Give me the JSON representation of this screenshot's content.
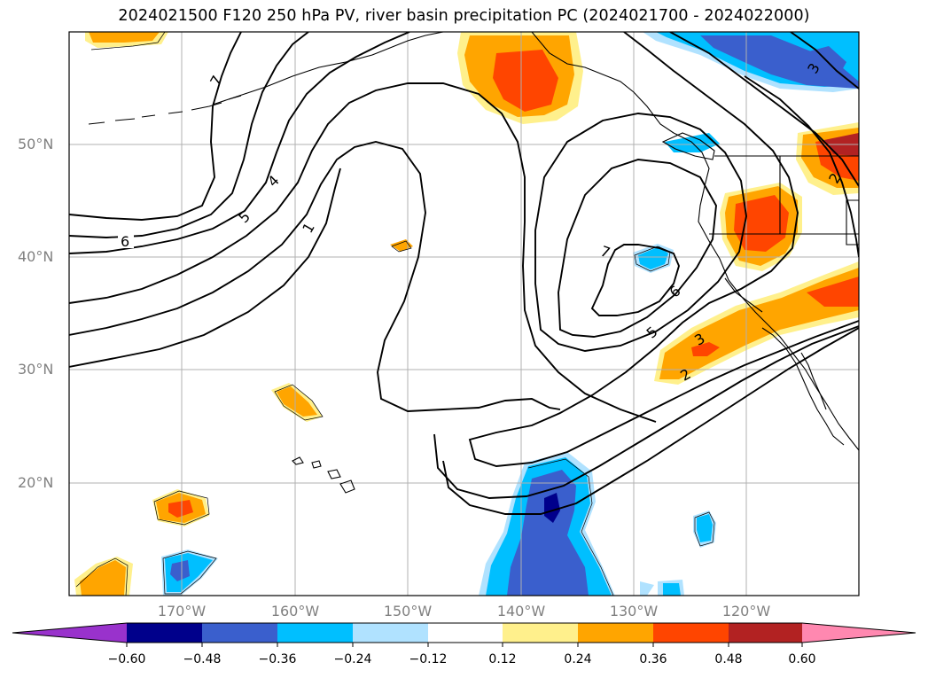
{
  "title": "2024021500 F120 250 hPa PV, river basin precipitation PC (2024021700 - 2024022000)",
  "lat_labels": [
    "50°N",
    "40°N",
    "30°N",
    "20°N"
  ],
  "lon_labels": [
    "170°W",
    "160°W",
    "150°W",
    "140°W",
    "130°W",
    "120°W"
  ],
  "pv_contour_labels": [
    "6",
    "5",
    "4",
    "1",
    "7",
    "7",
    "6",
    "5",
    "3",
    "2",
    "2",
    "3"
  ],
  "colorbar": {
    "ticks": [
      "−0.60",
      "−0.48",
      "−0.36",
      "−0.24",
      "−0.12",
      "0.12",
      "0.24",
      "0.36",
      "0.48",
      "0.60"
    ],
    "colors": [
      "#9932cc",
      "#00008b",
      "#3a5fcd",
      "#00bfff",
      "#b0e2ff",
      "#ffffff",
      "#fff08c",
      "#ffa500",
      "#ff4500",
      "#b22222",
      "#ff88b0"
    ]
  },
  "colors": {
    "strong_neg": "#00008b",
    "neg3": "#3a5fcd",
    "neg2": "#00bfff",
    "neg1": "#b0e2ff",
    "pos1": "#fff08c",
    "pos2": "#ffa500",
    "pos3": "#ff4500",
    "pos4": "#b22222"
  }
}
